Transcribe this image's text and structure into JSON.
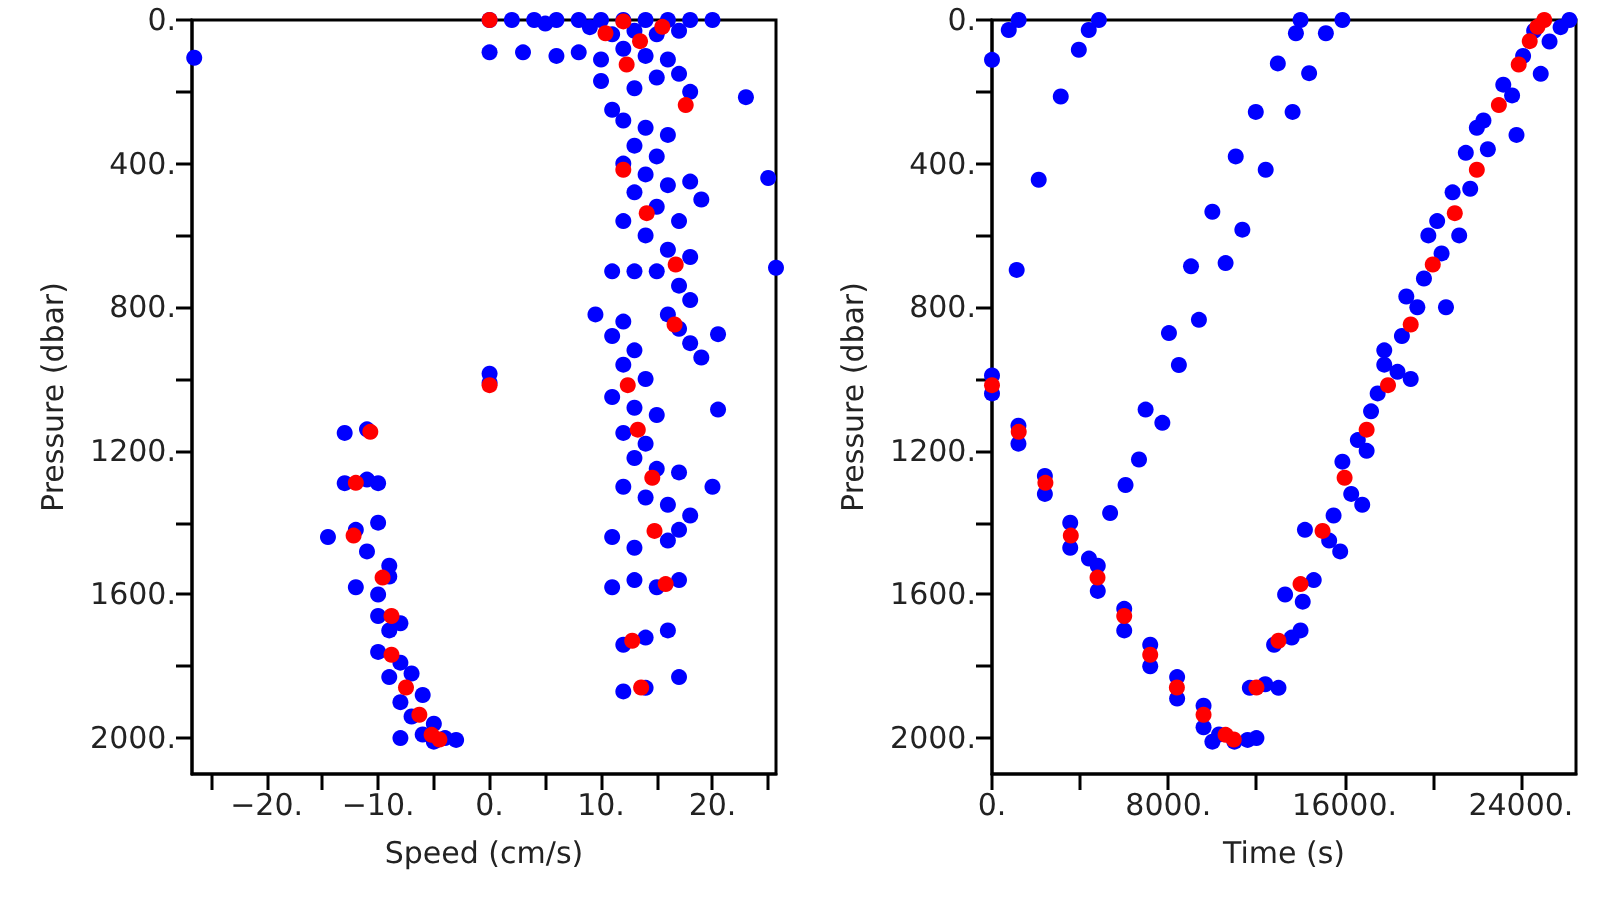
{
  "chart_data": [
    {
      "type": "scatter",
      "xlabel": "Speed (cm/s)",
      "ylabel": "Pressure (dbar)",
      "xlim": [
        -26.7,
        25.7
      ],
      "ylim": [
        2100,
        0
      ],
      "xticks": [
        {
          "value": -25,
          "label": null
        },
        {
          "value": -20,
          "label": "−20."
        },
        {
          "value": -15,
          "label": null
        },
        {
          "value": -10,
          "label": "−10."
        },
        {
          "value": -5,
          "label": null
        },
        {
          "value": 0,
          "label": "0."
        },
        {
          "value": 5,
          "label": null
        },
        {
          "value": 10,
          "label": "10."
        },
        {
          "value": 15,
          "label": null
        },
        {
          "value": 20,
          "label": "20."
        },
        {
          "value": 25,
          "label": null
        }
      ],
      "yticks": [
        {
          "value": 0,
          "label": "0."
        },
        {
          "value": 200,
          "label": null
        },
        {
          "value": 400,
          "label": "400."
        },
        {
          "value": 600,
          "label": null
        },
        {
          "value": 800,
          "label": "800."
        },
        {
          "value": 1000,
          "label": null
        },
        {
          "value": 1200,
          "label": "1200."
        },
        {
          "value": 1400,
          "label": null
        },
        {
          "value": 1600,
          "label": "1600."
        },
        {
          "value": 1800,
          "label": null
        },
        {
          "value": 2000,
          "label": "2000."
        }
      ],
      "marker": "circle",
      "series": [
        {
          "color": "#0000ff",
          "x": [
            0,
            2,
            4,
            6,
            8,
            10,
            12,
            14,
            16,
            18,
            20,
            5,
            9,
            11,
            13,
            15,
            17,
            3,
            6,
            8,
            10,
            12,
            14,
            16,
            17,
            18,
            15,
            13,
            0,
            -26.5,
            23,
            10,
            11,
            12,
            14,
            16,
            13,
            15,
            12,
            14,
            16,
            13,
            15,
            17,
            14,
            16,
            18,
            15,
            17,
            18,
            16,
            17,
            18,
            19,
            12,
            11,
            13,
            18,
            19,
            9.5,
            25,
            25.7,
            20.5,
            20.5,
            12,
            11,
            13,
            12,
            14,
            11,
            13,
            15,
            12,
            14,
            13,
            15,
            17,
            12,
            14,
            16,
            18,
            17,
            11,
            13,
            16,
            11,
            13,
            15,
            17,
            12,
            14,
            16,
            12,
            14,
            17,
            20,
            0,
            0,
            -13,
            -11,
            -13,
            -11,
            -10,
            -14.5,
            -12,
            -10,
            -11,
            -9,
            -12,
            -10,
            -9,
            -10,
            -8,
            -9,
            -10,
            -8,
            -9,
            -7,
            -6,
            -8,
            -7,
            -5,
            -6,
            -4,
            -3,
            -5,
            -8
          ],
          "values": [
            0,
            0,
            0,
            0,
            0,
            0,
            0,
            0,
            0,
            0,
            0,
            10,
            20,
            40,
            30,
            40,
            30,
            90,
            100,
            90,
            110,
            80,
            100,
            110,
            150,
            200,
            160,
            190,
            90,
            105,
            215,
            170,
            250,
            280,
            300,
            320,
            350,
            380,
            400,
            430,
            460,
            480,
            520,
            560,
            600,
            640,
            660,
            700,
            740,
            780,
            820,
            860,
            900,
            940,
            560,
            700,
            700,
            450,
            500,
            820,
            440,
            690,
            875,
            1085,
            840,
            880,
            920,
            960,
            1000,
            1050,
            1080,
            1100,
            1150,
            1180,
            1220,
            1250,
            1260,
            1300,
            1330,
            1350,
            1380,
            1420,
            1440,
            1470,
            1450,
            1580,
            1560,
            1580,
            1560,
            1740,
            1720,
            1700,
            1870,
            1860,
            1830,
            1300,
            985,
            1010,
            1150,
            1140,
            1290,
            1280,
            1290,
            1440,
            1420,
            1400,
            1480,
            1520,
            1580,
            1600,
            1550,
            1660,
            1680,
            1700,
            1760,
            1790,
            1830,
            1820,
            1880,
            1900,
            1940,
            1960,
            1990,
            2000,
            2005,
            2010,
            2000
          ]
        },
        {
          "color": "#ff0000",
          "x": [
            0,
            10.4,
            12,
            13.5,
            15.5,
            12.3,
            17.6,
            12,
            14.1,
            16.7,
            16.6,
            12.4,
            13.3,
            14.6,
            14.8,
            15.8,
            12.8,
            13.6,
            0,
            -10.7,
            -12,
            -12.2,
            -9.6,
            -8.8,
            -8.8,
            -7.5,
            -6.3,
            -5.2,
            -4.5
          ],
          "values": [
            0,
            37,
            4,
            59,
            19,
            124,
            237,
            417,
            538,
            681,
            848,
            1017,
            1141,
            1275,
            1423,
            1571,
            1729,
            1859,
            1017,
            1147,
            1289,
            1436,
            1553,
            1660,
            1768,
            1859,
            1935,
            1991,
            2004
          ]
        }
      ]
    },
    {
      "type": "scatter",
      "xlabel": "Time (s)",
      "ylabel": "Pressure (dbar)",
      "xlim": [
        0,
        26500
      ],
      "ylim": [
        2100,
        0
      ],
      "xticks": [
        {
          "value": 0,
          "label": "0."
        },
        {
          "value": 4000,
          "label": null
        },
        {
          "value": 8000,
          "label": "8000."
        },
        {
          "value": 12000,
          "label": null
        },
        {
          "value": 16000,
          "label": "16000."
        },
        {
          "value": 20000,
          "label": null
        },
        {
          "value": 24000,
          "label": "24000."
        }
      ],
      "yticks": [
        {
          "value": 0,
          "label": "0."
        },
        {
          "value": 200,
          "label": null
        },
        {
          "value": 400,
          "label": "400."
        },
        {
          "value": 600,
          "label": null
        },
        {
          "value": 800,
          "label": "800."
        },
        {
          "value": 1000,
          "label": null
        },
        {
          "value": 1200,
          "label": "1200."
        },
        {
          "value": 1400,
          "label": null
        },
        {
          "value": 1600,
          "label": "1600."
        },
        {
          "value": 1800,
          "label": null
        },
        {
          "value": 2000,
          "label": "2000."
        }
      ],
      "marker": "circle",
      "series": [
        {
          "color": "#0000ff",
          "x": [
            0,
            0,
            1200,
            1200,
            2400,
            2400,
            3550,
            3550,
            4400,
            4800,
            4800,
            6000,
            6000,
            7180,
            7180,
            8400,
            8400,
            9600,
            9600,
            10300,
            11000,
            11600,
            12000,
            10000,
            11700,
            12400,
            12800,
            13600,
            13300,
            14100,
            14600,
            14200,
            15300,
            15500,
            15900,
            16300,
            16600,
            17200,
            17500,
            17800,
            18400,
            18600,
            19300,
            18800,
            19600,
            20400,
            20200,
            20900,
            21700,
            21500,
            22500,
            22300,
            23200,
            23600,
            24100,
            24600,
            25300,
            25800,
            26200,
            24900,
            22000,
            20600,
            19000,
            17000,
            16800,
            15800,
            14000,
            13000,
            17800,
            19800,
            21200,
            23800,
            0,
            760,
            1210,
            3120,
            2120,
            1120,
            3940,
            4390,
            4850,
            5360,
            6060,
            6670,
            6970,
            7730,
            8030,
            8480,
            9030,
            9390,
            9999,
            10600,
            11060,
            11360,
            11970,
            12420,
            12970,
            13640,
            13790,
            14390,
            14000,
            15150,
            15900
          ],
          "values": [
            990,
            1040,
            1130,
            1180,
            1270,
            1320,
            1400,
            1470,
            1500,
            1520,
            1590,
            1640,
            1700,
            1740,
            1800,
            1830,
            1890,
            1910,
            1970,
            1990,
            2010,
            2005,
            2000,
            2010,
            1860,
            1850,
            1740,
            1720,
            1600,
            1620,
            1560,
            1420,
            1450,
            1380,
            1230,
            1320,
            1170,
            1090,
            1040,
            960,
            980,
            880,
            800,
            770,
            720,
            650,
            560,
            480,
            470,
            370,
            360,
            280,
            180,
            210,
            100,
            30,
            60,
            20,
            0,
            150,
            300,
            800,
            1000,
            1200,
            1350,
            1480,
            1700,
            1860,
            920,
            600,
            600,
            320,
            111,
            28,
            0,
            213,
            445,
            696,
            83,
            28,
            0,
            1373,
            1295,
            1224,
            1085,
            1122,
            872,
            961,
            686,
            835,
            534,
            677,
            380,
            584,
            256,
            417,
            121,
            256,
            37,
            148,
            0,
            37,
            0
          ]
        },
        {
          "color": "#ff0000",
          "x": [
            0,
            1212,
            2424,
            3576,
            4788,
            6000,
            7180,
            8390,
            9600,
            10600,
            10970,
            12000,
            13000,
            14000,
            15000,
            16000,
            17000,
            17970,
            19000,
            20000,
            21000,
            22000,
            23000,
            23900,
            24400,
            24750,
            25060
          ],
          "values": [
            1017,
            1147,
            1289,
            1436,
            1553,
            1660,
            1768,
            1859,
            1935,
            1991,
            2004,
            1859,
            1729,
            1571,
            1423,
            1275,
            1141,
            1017,
            848,
            681,
            538,
            417,
            237,
            124,
            59,
            19,
            0
          ]
        }
      ]
    }
  ]
}
